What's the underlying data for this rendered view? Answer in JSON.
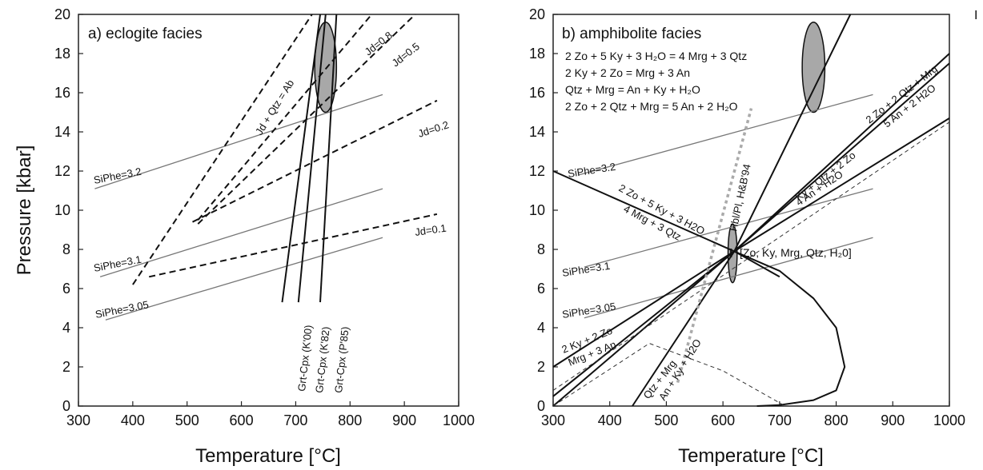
{
  "chart_data": [
    {
      "type": "line",
      "title": "a) eclogite facies",
      "xlabel": "Temperature [°C]",
      "ylabel": "Pressure [kbar]",
      "xlim": [
        300,
        1000
      ],
      "ylim": [
        0,
        20
      ],
      "xticks": [
        300,
        400,
        500,
        600,
        700,
        800,
        900,
        1000
      ],
      "yticks": [
        0,
        2,
        4,
        6,
        8,
        10,
        12,
        14,
        16,
        18,
        20
      ],
      "grid": false,
      "series": [
        {
          "name": "SiPhe=3.2",
          "style": "thin-solid",
          "x": [
            330,
            860
          ],
          "y": [
            11.1,
            15.9
          ]
        },
        {
          "name": "SiPhe=3.1",
          "style": "thin-solid",
          "x": [
            340,
            860
          ],
          "y": [
            6.6,
            11.1
          ]
        },
        {
          "name": "SiPhe=3.05",
          "style": "thin-solid",
          "x": [
            350,
            860
          ],
          "y": [
            4.4,
            8.6
          ]
        },
        {
          "name": "Jd=0.1",
          "style": "dashed",
          "x": [
            430,
            960
          ],
          "y": [
            6.6,
            9.8
          ]
        },
        {
          "name": "Jd=0.2",
          "style": "dashed",
          "x": [
            510,
            960
          ],
          "y": [
            9.4,
            15.6
          ]
        },
        {
          "name": "Jd=0.5",
          "style": "dashed",
          "x": [
            520,
            920
          ],
          "y": [
            9.3,
            20.0
          ]
        },
        {
          "name": "Jd=0.8",
          "style": "dashed",
          "x": [
            520,
            840
          ],
          "y": [
            9.5,
            20.0
          ]
        },
        {
          "name": "Jd + Qtz = Ab",
          "style": "dashed",
          "x": [
            400,
            730
          ],
          "y": [
            6.2,
            20.0
          ]
        },
        {
          "name": "Grt-Cpx (K'00)",
          "style": "solid",
          "x": [
            675,
            745
          ],
          "y": [
            5.3,
            20.0
          ]
        },
        {
          "name": "Grt-Cpx (K'82)",
          "style": "solid",
          "x": [
            705,
            755
          ],
          "y": [
            5.3,
            20.0
          ]
        },
        {
          "name": "Grt-Cpx (P'85)",
          "style": "solid",
          "x": [
            745,
            775
          ],
          "y": [
            5.3,
            20.0
          ]
        }
      ],
      "ellipse": {
        "cx": 755,
        "cy": 17.3,
        "rx": 20,
        "ry": 2.3,
        "fill": "#a8a8a8"
      },
      "labels": [
        "SiPhe=3.2",
        "SiPhe=3.1",
        "SiPhe=3.05",
        "Jd=0.1",
        "Jd=0.2",
        "Jd=0.5",
        "Jd=0.8",
        "Jd + Qtz = Ab",
        "Grt-Cpx (K'00)",
        "Grt-Cpx (K'82)",
        "Grt-Cpx (P'85)"
      ]
    },
    {
      "type": "line",
      "title": "b) amphibolite facies",
      "xlabel": "Temperature [°C]",
      "ylabel": "",
      "xlim": [
        300,
        1000
      ],
      "ylim": [
        0,
        20
      ],
      "xticks": [
        300,
        400,
        500,
        600,
        700,
        800,
        900,
        1000
      ],
      "yticks": [
        0,
        2,
        4,
        6,
        8,
        10,
        12,
        14,
        16,
        18,
        20
      ],
      "grid": false,
      "reactions": [
        "2 Zo + 5 Ky + 3 H₂O = 4 Mrg + 3 Qtz",
        "2 Ky + 2 Zo = Mrg + 3 An",
        "Qtz + Mrg = An + Ky + H₂O",
        "2 Zo + 2 Qtz + Mrg = 5 An + 2 H₂O"
      ],
      "invariant_point_label": "[Zo, Ky, Mrg, Qtz, H₂0]",
      "invariant_point": {
        "x": 620,
        "y": 7.9
      },
      "series": [
        {
          "name": "SiPhe=3.2",
          "style": "thin-solid",
          "x": [
            345,
            865
          ],
          "y": [
            11.8,
            15.9
          ]
        },
        {
          "name": "SiPhe=3.1",
          "style": "thin-solid",
          "x": [
            355,
            865
          ],
          "y": [
            7.1,
            11.1
          ]
        },
        {
          "name": "SiPhe=3.05",
          "style": "thin-solid",
          "x": [
            355,
            865
          ],
          "y": [
            4.5,
            8.6
          ]
        },
        {
          "name": "2 Zo + 5 Ky + 3 H2O = 4 Mrg + 3 Qtz",
          "style": "solid",
          "x": [
            300,
            620,
            700
          ],
          "y": [
            12.0,
            7.9,
            6.6
          ]
        },
        {
          "name": "2 Ky + 2 Zo = Mrg + 3 An",
          "style": "solid",
          "x": [
            300,
            620,
            1000
          ],
          "y": [
            2.0,
            7.9,
            14.7
          ]
        },
        {
          "name": "Qtz + Mrg = An + Ky + H2O",
          "style": "solid",
          "x": [
            440,
            620,
            825
          ],
          "y": [
            0.0,
            7.9,
            20.0
          ]
        },
        {
          "name": "2 Zo + 2 Qtz + Mrg = 5 An + 2 H2O",
          "style": "solid",
          "x": [
            300,
            620,
            1000
          ],
          "y": [
            0.5,
            7.9,
            18.0
          ]
        },
        {
          "name": "Ky + Qtz + 2 Zo = 4 An + H2O",
          "style": "solid",
          "x": [
            300,
            620,
            1000
          ],
          "y": [
            0.0,
            7.9,
            17.5
          ]
        },
        {
          "name": "Zo-out curve",
          "style": "solid",
          "x": [
            620,
            700,
            760,
            800,
            815,
            800,
            760,
            700,
            660
          ],
          "y": [
            7.9,
            6.9,
            5.5,
            4.0,
            2.0,
            0.8,
            0.3,
            0.05,
            0.0
          ]
        },
        {
          "name": "dashed reaction 1",
          "style": "thin-dashed",
          "x": [
            300,
            1000
          ],
          "y": [
            0.8,
            14.5
          ]
        },
        {
          "name": "dashed reaction 2",
          "style": "thin-dashed",
          "x": [
            300,
            470,
            600,
            710
          ],
          "y": [
            0.0,
            3.2,
            1.8,
            0.0
          ]
        },
        {
          "name": "Hbl/Pl, H&B'94",
          "style": "gray-dotted",
          "x": [
            520,
            650
          ],
          "y": [
            1.2,
            15.2
          ]
        }
      ],
      "ellipses": [
        {
          "cx": 760,
          "cy": 17.3,
          "rx": 20,
          "ry": 2.3,
          "fill": "#a8a8a8"
        },
        {
          "cx": 617,
          "cy": 7.8,
          "rx": 8,
          "ry": 1.5,
          "fill": "#a8a8a8"
        }
      ],
      "labels": [
        "SiPhe=3.2",
        "SiPhe=3.1",
        "SiPhe=3.05",
        "2 Zo + 5 Ky + 3 H2O",
        "4 Mrg + 3 Qtz",
        "2 Ky + 2 Zo",
        "Mrg + 3 An",
        "Qtz + Mrg",
        "An + Ky + H2O",
        "Ky + Qtz + 2 Zo",
        "4 An + H2O",
        "2 Zo + 2 Qtz + Mrg",
        "5 An + 2 H2O",
        "Hbl/Pl, H&B'94"
      ]
    }
  ],
  "corner_mark": "I"
}
